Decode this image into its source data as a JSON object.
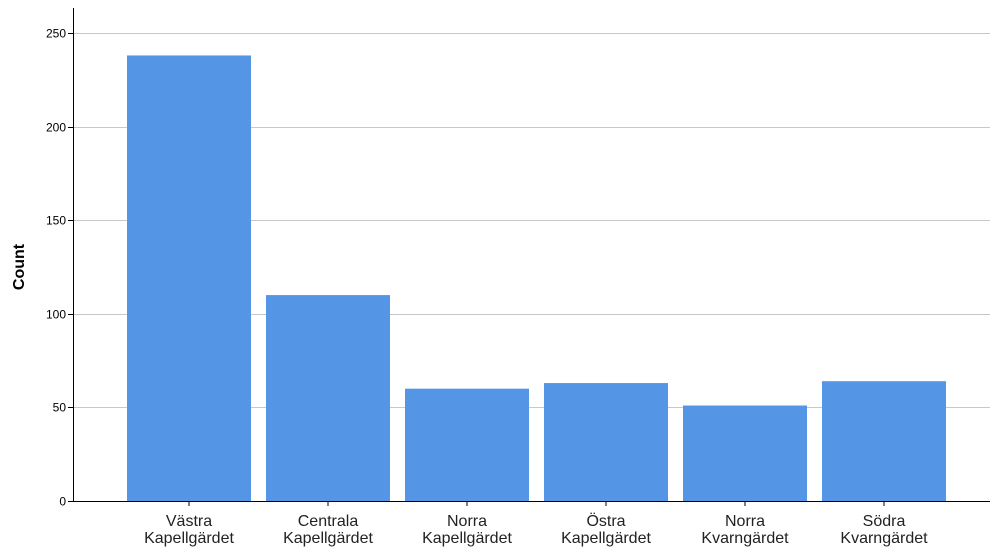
{
  "chart_data": {
    "type": "bar",
    "title": "",
    "xlabel": "",
    "ylabel": "Count",
    "categories": [
      [
        "Västra",
        "Kapellgärdet"
      ],
      [
        "Centrala",
        "Kapellgärdet"
      ],
      [
        "Norra",
        "Kapellgärdet"
      ],
      [
        "Östra",
        "Kapellgärdet"
      ],
      [
        "Norra",
        "Kvarngärdet"
      ],
      [
        "Södra",
        "Kvarngärdet"
      ]
    ],
    "values": [
      238,
      110,
      60,
      63,
      51,
      64
    ],
    "ylim": [
      0,
      250
    ],
    "yticks": [
      0,
      50,
      100,
      150,
      200,
      250
    ],
    "grid": true,
    "colors": {
      "bar": "#5595e5",
      "gridline": "#c8c8c8",
      "axis": "#000000",
      "text": "#000000"
    }
  }
}
